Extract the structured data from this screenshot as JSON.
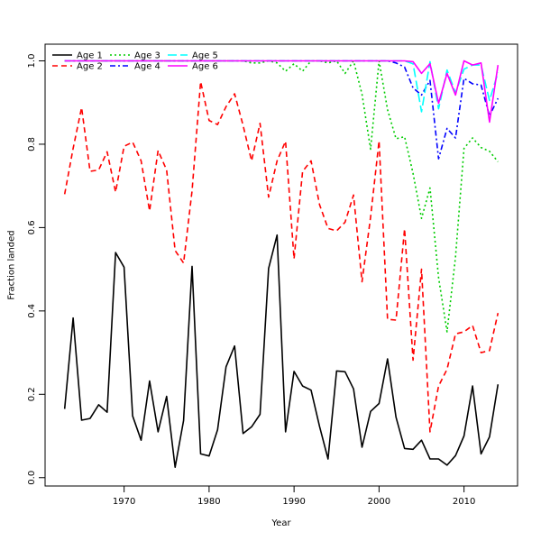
{
  "chart_data": {
    "type": "line",
    "xlabel": "Year",
    "ylabel": "Fraction landed",
    "xlim": [
      1960.7,
      2016.3
    ],
    "ylim": [
      -0.02,
      1.04
    ],
    "xticks": [
      1970,
      1980,
      1990,
      2000,
      2010
    ],
    "xtick_labels": [
      "1970",
      "1980",
      "1990",
      "2000",
      "2010"
    ],
    "yticks": [
      0.0,
      0.2,
      0.4,
      0.6,
      0.8,
      1.0
    ],
    "ytick_labels": [
      "0.0",
      "0.2",
      "0.4",
      "0.6",
      "0.8",
      "1.0"
    ],
    "legend_position": "top-left",
    "x": [
      1963,
      1964,
      1965,
      1966,
      1967,
      1968,
      1969,
      1970,
      1971,
      1972,
      1973,
      1974,
      1975,
      1976,
      1977,
      1978,
      1979,
      1980,
      1981,
      1982,
      1983,
      1984,
      1985,
      1986,
      1987,
      1988,
      1989,
      1990,
      1991,
      1992,
      1993,
      1994,
      1995,
      1996,
      1997,
      1998,
      1999,
      2000,
      2001,
      2002,
      2003,
      2004,
      2005,
      2006,
      2007,
      2008,
      2009,
      2010,
      2011,
      2012,
      2013,
      2014
    ],
    "series": [
      {
        "name": "Age 1",
        "color": "#000000",
        "dash": "solid",
        "values": [
          0.165,
          0.383,
          0.138,
          0.142,
          0.175,
          0.157,
          0.54,
          0.505,
          0.148,
          0.09,
          0.232,
          0.11,
          0.195,
          0.025,
          0.137,
          0.507,
          0.057,
          0.052,
          0.115,
          0.266,
          0.316,
          0.106,
          0.122,
          0.152,
          0.502,
          0.582,
          0.11,
          0.255,
          0.22,
          0.21,
          0.123,
          0.045,
          0.256,
          0.254,
          0.213,
          0.073,
          0.159,
          0.178,
          0.285,
          0.145,
          0.07,
          0.068,
          0.09,
          0.045,
          0.045,
          0.03,
          0.053,
          0.1,
          0.22,
          0.057,
          0.098,
          0.224
        ]
      },
      {
        "name": "Age 2",
        "color": "#ff0000",
        "dash": "dashed",
        "values": [
          0.68,
          0.79,
          0.888,
          0.735,
          0.738,
          0.782,
          0.685,
          0.795,
          0.805,
          0.76,
          0.64,
          0.785,
          0.738,
          0.545,
          0.515,
          0.688,
          0.95,
          0.857,
          0.847,
          0.89,
          0.921,
          0.845,
          0.76,
          0.85,
          0.673,
          0.76,
          0.807,
          0.525,
          0.735,
          0.76,
          0.655,
          0.598,
          0.592,
          0.613,
          0.678,
          0.47,
          0.625,
          0.808,
          0.38,
          0.378,
          0.597,
          0.282,
          0.5,
          0.11,
          0.22,
          0.26,
          0.345,
          0.35,
          0.365,
          0.3,
          0.305,
          0.395
        ]
      },
      {
        "name": "Age 3",
        "color": "#00cc00",
        "dash": "dotted",
        "values": [
          1.0,
          1.0,
          1.0,
          1.0,
          1.0,
          1.0,
          1.0,
          1.0,
          1.0,
          1.0,
          1.0,
          1.0,
          1.0,
          1.0,
          1.0,
          1.0,
          1.0,
          1.0,
          1.0,
          1.0,
          1.0,
          1.0,
          0.995,
          0.995,
          1.0,
          0.995,
          0.975,
          0.993,
          0.975,
          1.0,
          1.0,
          0.995,
          1.0,
          0.97,
          1.0,
          0.92,
          0.788,
          1.0,
          0.883,
          0.813,
          0.818,
          0.73,
          0.622,
          0.695,
          0.48,
          0.35,
          0.53,
          0.79,
          0.815,
          0.792,
          0.783,
          0.758
        ]
      },
      {
        "name": "Age 4",
        "color": "#0000ff",
        "dash": "dashdot",
        "values": [
          1.0,
          1.0,
          1.0,
          1.0,
          1.0,
          1.0,
          1.0,
          1.0,
          1.0,
          1.0,
          1.0,
          1.0,
          1.0,
          1.0,
          1.0,
          1.0,
          1.0,
          1.0,
          1.0,
          1.0,
          1.0,
          1.0,
          1.0,
          1.0,
          1.0,
          1.0,
          1.0,
          1.0,
          1.0,
          1.0,
          1.0,
          1.0,
          1.0,
          1.0,
          1.0,
          1.0,
          1.0,
          1.0,
          1.0,
          0.995,
          0.985,
          0.935,
          0.918,
          0.953,
          0.765,
          0.838,
          0.815,
          0.958,
          0.945,
          0.942,
          0.868,
          0.91
        ]
      },
      {
        "name": "Age 5",
        "color": "#00ffff",
        "dash": "longdash",
        "values": [
          1.0,
          1.0,
          1.0,
          1.0,
          1.0,
          1.0,
          1.0,
          1.0,
          1.0,
          1.0,
          1.0,
          1.0,
          1.0,
          1.0,
          1.0,
          1.0,
          1.0,
          1.0,
          1.0,
          1.0,
          1.0,
          1.0,
          1.0,
          1.0,
          1.0,
          1.0,
          1.0,
          1.0,
          1.0,
          1.0,
          1.0,
          1.0,
          1.0,
          1.0,
          1.0,
          1.0,
          1.0,
          1.0,
          1.0,
          1.0,
          1.0,
          0.993,
          0.878,
          0.998,
          0.885,
          0.978,
          0.923,
          0.98,
          0.99,
          0.99,
          0.905,
          0.972
        ]
      },
      {
        "name": "Age 6",
        "color": "#ff00ff",
        "dash": "solid",
        "values": [
          1.0,
          1.0,
          1.0,
          1.0,
          1.0,
          1.0,
          1.0,
          1.0,
          1.0,
          1.0,
          1.0,
          1.0,
          1.0,
          1.0,
          1.0,
          1.0,
          1.0,
          1.0,
          1.0,
          1.0,
          1.0,
          1.0,
          1.0,
          1.0,
          1.0,
          1.0,
          1.0,
          1.0,
          1.0,
          1.0,
          1.0,
          1.0,
          1.0,
          1.0,
          1.0,
          1.0,
          1.0,
          1.0,
          1.0,
          1.0,
          1.0,
          0.998,
          0.97,
          0.993,
          0.898,
          0.97,
          0.918,
          1.0,
          0.99,
          0.995,
          0.853,
          0.99
        ]
      }
    ]
  }
}
